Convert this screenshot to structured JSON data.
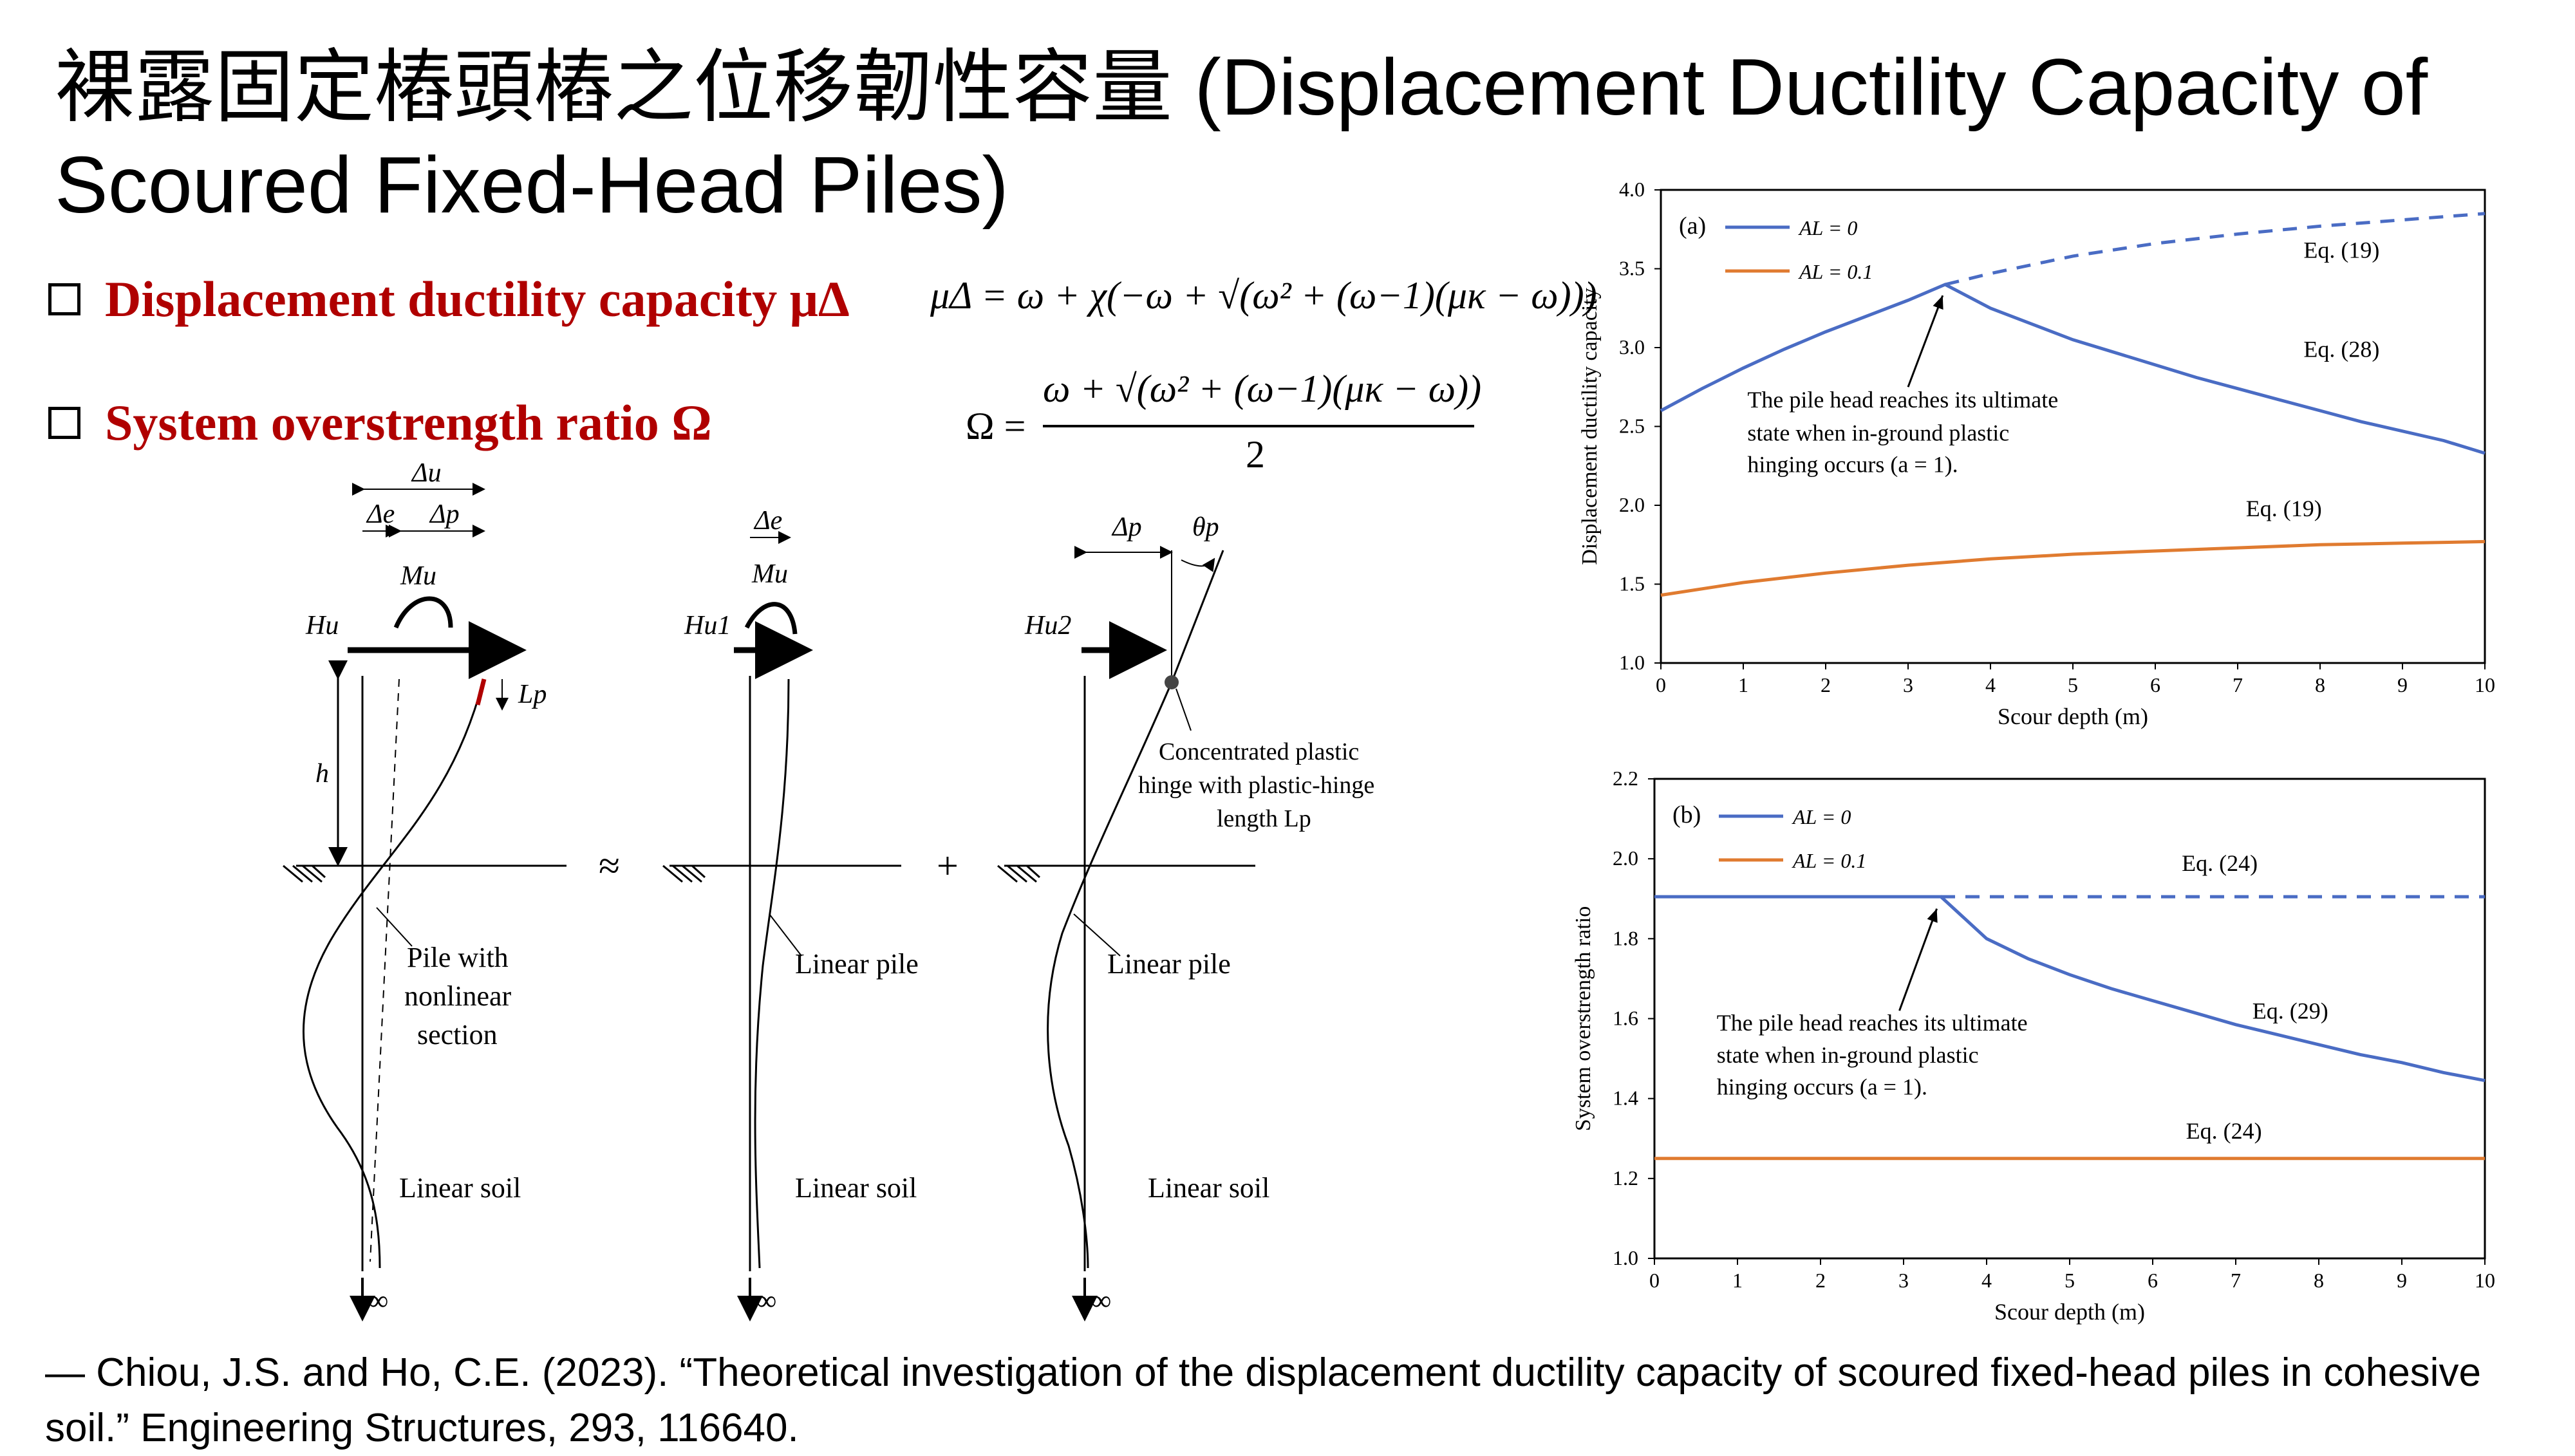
{
  "title": "裸露固定樁頭樁之位移韌性容量 (Displacement Ductility Capacity of Scoured Fixed-Head Piles)",
  "bullets": [
    {
      "label": "Displacement ductility capacity μΔ"
    },
    {
      "label": "System overstrength ratio Ω"
    }
  ],
  "equations": {
    "mu": "μΔ = ω + χ(−ω + √(ω² + (ω−1)(μκ − ω)))",
    "omega_numer": "ω + √(ω² + (ω−1)(μκ − ω))",
    "omega_lhs": "Ω =",
    "omega_denom": "2"
  },
  "diagram": {
    "labels": {
      "delta_u": "Δu",
      "delta_e": "Δe",
      "delta_p": "Δp",
      "theta_p": "θp",
      "M_u": "Mu",
      "H_u": "Hu",
      "H_u1": "Hu1",
      "H_u2": "Hu2",
      "h": "h",
      "L_p": "Lp",
      "approx": "≈",
      "plus": "+",
      "infinity": "∞",
      "pile_nonlinear_1": "Pile with",
      "pile_nonlinear_2": "nonlinear",
      "pile_nonlinear_3": "section",
      "linear_pile": "Linear pile",
      "linear_soil": "Linear soil",
      "hinge_1": "Concentrated  plastic",
      "hinge_2": "hinge  with  plastic-hinge",
      "hinge_3": "length  Lp"
    }
  },
  "reference": "— Chiou, J.S. and Ho, C.E. (2023). “Theoretical investigation of the displacement ductility capacity of scoured fixed-head piles in cohesive soil.” Engineering Structures, 293, 116640.",
  "chart_data": [
    {
      "type": "line",
      "panel_label": "(a)",
      "xlabel": "Scour depth (m)",
      "ylabel": "Displacement  ductility capacity",
      "xlim": [
        0,
        10
      ],
      "ylim": [
        1.0,
        4.0
      ],
      "xticks": [
        "0",
        "1",
        "2",
        "3",
        "4",
        "5",
        "6",
        "7",
        "8",
        "9",
        "10"
      ],
      "yticks": [
        "1.0",
        "1.5",
        "2.0",
        "2.5",
        "3.0",
        "3.5",
        "4.0"
      ],
      "legend": [
        "AL = 0",
        "AL = 0.1"
      ],
      "series": [
        {
          "name": "AL = 0",
          "color": "#4a6cc4",
          "dash": false,
          "x": [
            0,
            0.5,
            1,
            1.5,
            2,
            2.5,
            3,
            3.45,
            4,
            4.5,
            5,
            5.5,
            6,
            6.5,
            7,
            7.5,
            8,
            8.5,
            9,
            9.5,
            10
          ],
          "y": [
            2.6,
            2.74,
            2.87,
            2.99,
            3.1,
            3.2,
            3.3,
            3.4,
            3.25,
            3.15,
            3.05,
            2.97,
            2.89,
            2.81,
            2.74,
            2.67,
            2.6,
            2.53,
            2.47,
            2.41,
            2.33
          ]
        },
        {
          "name": "AL = 0 (Eq. 19 extension)",
          "color": "#4a6cc4",
          "dash": true,
          "x": [
            3.45,
            4,
            5,
            6,
            7,
            8,
            9,
            10
          ],
          "y": [
            3.4,
            3.47,
            3.58,
            3.66,
            3.72,
            3.77,
            3.81,
            3.85
          ]
        },
        {
          "name": "AL = 0.1",
          "color": "#e07b30",
          "dash": false,
          "x": [
            0,
            1,
            2,
            3,
            4,
            5,
            6,
            7,
            8,
            9,
            10
          ],
          "y": [
            1.43,
            1.51,
            1.57,
            1.62,
            1.66,
            1.69,
            1.71,
            1.73,
            1.75,
            1.76,
            1.77
          ]
        }
      ],
      "annotations": [
        {
          "text": "Eq. (19)",
          "x": 7.8,
          "y": 3.57
        },
        {
          "text": "Eq. (28)",
          "x": 7.8,
          "y": 2.94
        },
        {
          "text": "Eq. (19)",
          "x": 7.1,
          "y": 1.93
        },
        {
          "text": "The pile head reaches its ultimate",
          "x": 1.05,
          "y": 2.62
        },
        {
          "text": "state when in-ground  plastic",
          "x": 1.05,
          "y": 2.41
        },
        {
          "text": "hinging  occurs (a = 1).",
          "x": 1.05,
          "y": 2.21
        }
      ]
    },
    {
      "type": "line",
      "panel_label": "(b)",
      "xlabel": "Scour depth (m)",
      "ylabel": "System overstrength ratio",
      "xlim": [
        0,
        10
      ],
      "ylim": [
        1.0,
        2.2
      ],
      "xticks": [
        "0",
        "1",
        "2",
        "3",
        "4",
        "5",
        "6",
        "7",
        "8",
        "9",
        "10"
      ],
      "yticks": [
        "1.0",
        "1.2",
        "1.4",
        "1.6",
        "1.8",
        "2.0",
        "2.2"
      ],
      "legend": [
        "AL = 0",
        "AL = 0.1"
      ],
      "series": [
        {
          "name": "AL = 0",
          "color": "#4a6cc4",
          "dash": false,
          "x": [
            0,
            3.45,
            4,
            4.5,
            5,
            5.5,
            6,
            6.5,
            7,
            7.5,
            8,
            8.5,
            9,
            9.5,
            10
          ],
          "y": [
            1.905,
            1.905,
            1.8,
            1.75,
            1.71,
            1.675,
            1.645,
            1.615,
            1.585,
            1.56,
            1.535,
            1.51,
            1.49,
            1.465,
            1.445
          ]
        },
        {
          "name": "AL = 0 (Eq. 24 extension)",
          "color": "#4a6cc4",
          "dash": true,
          "x": [
            3.45,
            10
          ],
          "y": [
            1.905,
            1.905
          ]
        },
        {
          "name": "AL = 0.1",
          "color": "#e07b30",
          "dash": false,
          "x": [
            0,
            10
          ],
          "y": [
            1.25,
            1.25
          ]
        }
      ],
      "annotations": [
        {
          "text": "Eq. (24)",
          "x": 6.35,
          "y": 1.97
        },
        {
          "text": "Eq. (29)",
          "x": 7.2,
          "y": 1.6
        },
        {
          "text": "Eq. (24)",
          "x": 6.4,
          "y": 1.3
        },
        {
          "text": "The pile  head reaches its ultimate",
          "x": 0.75,
          "y": 1.57
        },
        {
          "text": "state when in-ground  plastic",
          "x": 0.75,
          "y": 1.49
        },
        {
          "text": "hinging  occurs (a = 1).",
          "x": 0.75,
          "y": 1.41
        }
      ]
    }
  ]
}
